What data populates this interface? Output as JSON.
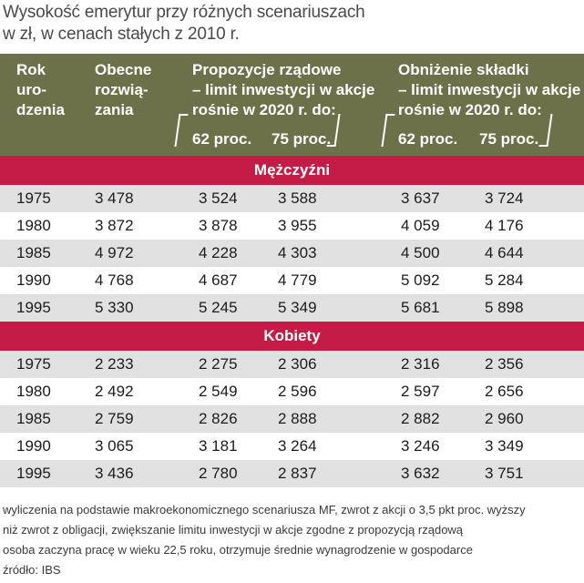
{
  "title": [
    "Wysokość emerytur przy różnych scenariuszach",
    "w zł, w cenach stałych z 2010 r."
  ],
  "header": {
    "col1": [
      "Rok",
      "uro-",
      "dzenia"
    ],
    "col2": [
      "Obecne",
      "rozwią-",
      "zania"
    ],
    "group1": [
      "Propozycje rządowe",
      "– limit inwestycji w akcje",
      "rośnie w 2020 r. do:"
    ],
    "group2": [
      "Obniżenie składki",
      "– limit inwestycji w akcje",
      "rośnie w 2020 r. do:"
    ],
    "sub62": "62 proc.",
    "sub75": "75 proc."
  },
  "colors": {
    "header_bg": "#6d7149",
    "section_bg": "#c41c46",
    "shade": "#e1e1e1"
  },
  "chart_data": {
    "type": "table",
    "title": "Wysokość emerytur przy różnych scenariuszach",
    "subtitle": "w zł, w cenach stałych z 2010 r.",
    "columns": [
      "Rok urodzenia",
      "Obecne rozwiązania",
      "Propozycje rządowe 62 proc.",
      "Propozycje rządowe 75 proc.",
      "Obniżenie składki 62 proc.",
      "Obniżenie składki 75 proc."
    ],
    "sections": [
      {
        "name": "Mężczyźni",
        "rows": [
          [
            "1975",
            "3 478",
            "3 524",
            "3 588",
            "3 637",
            "3 724"
          ],
          [
            "1980",
            "3 872",
            "3 878",
            "3 955",
            "4 059",
            "4 176"
          ],
          [
            "1985",
            "4 972",
            "4 228",
            "4 303",
            "4 500",
            "4 644"
          ],
          [
            "1990",
            "4 768",
            "4 687",
            "4 779",
            "5 092",
            "5 284"
          ],
          [
            "1995",
            "5 330",
            "5 245",
            "5 349",
            "5 681",
            "5 898"
          ]
        ]
      },
      {
        "name": "Kobiety",
        "rows": [
          [
            "1975",
            "2 233",
            "2 275",
            "2 306",
            "2 316",
            "2 356"
          ],
          [
            "1980",
            "2 492",
            "2 549",
            "2 596",
            "2 597",
            "2 656"
          ],
          [
            "1985",
            "2 759",
            "2 826",
            "2 888",
            "2 882",
            "2 960"
          ],
          [
            "1990",
            "3 065",
            "3 181",
            "3 264",
            "3 246",
            "3 349"
          ],
          [
            "1995",
            "3 436",
            "2 780",
            "2 837",
            "3 632",
            "3 751"
          ]
        ]
      }
    ]
  },
  "footer": [
    "wyliczenia na podstawie makroekonomicznego scenariusza MF,  zwrot z akcji o 3,5 pkt proc. wyższy",
    "niż zwrot z obligacji, zwiększanie limitu inwestycji w akcje zgodne z propozycją rządową",
    "osoba zaczyna pracę w wieku 22,5 roku, otrzymuje średnie wynagrodzenie w gospodarce",
    "źródło: IBS"
  ]
}
